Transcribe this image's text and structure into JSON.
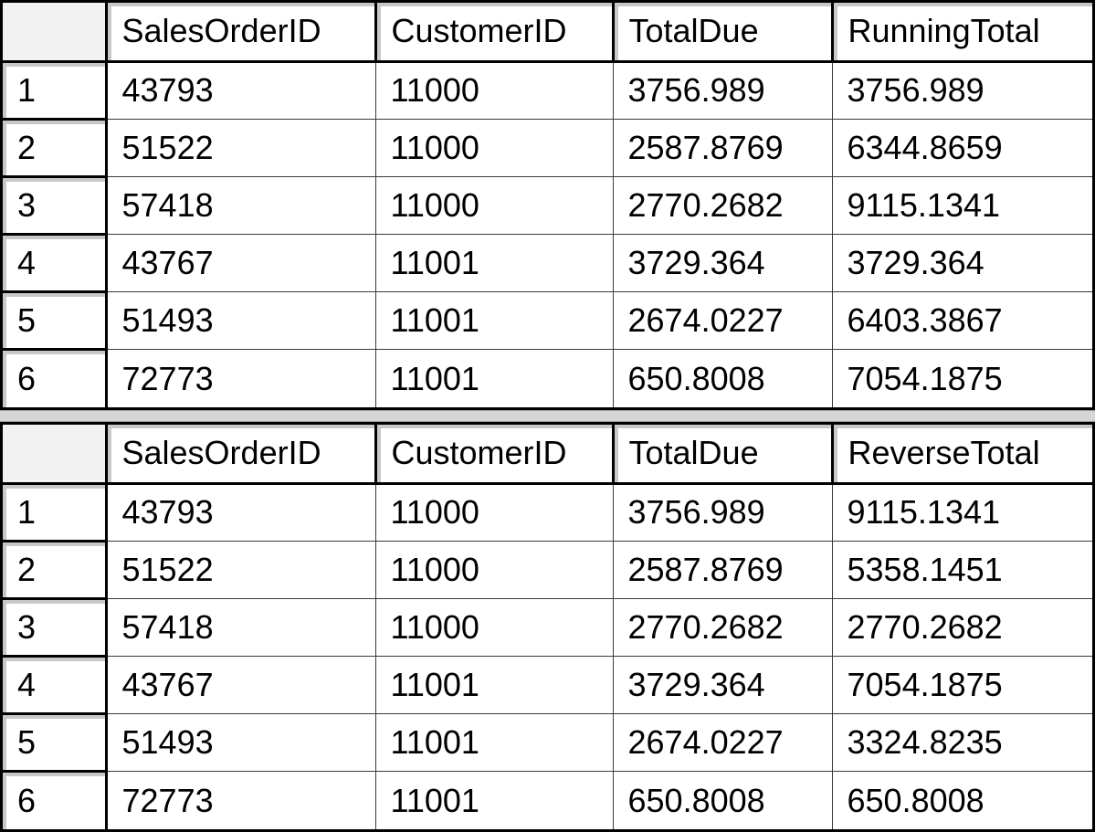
{
  "result_sets": [
    {
      "columns": [
        "SalesOrderID",
        "CustomerID",
        "TotalDue",
        "RunningTotal"
      ],
      "rows": [
        {
          "row_number": "1",
          "cells": [
            "43793",
            "11000",
            "3756.989",
            "3756.989"
          ]
        },
        {
          "row_number": "2",
          "cells": [
            "51522",
            "11000",
            "2587.8769",
            "6344.8659"
          ]
        },
        {
          "row_number": "3",
          "cells": [
            "57418",
            "11000",
            "2770.2682",
            "9115.1341"
          ]
        },
        {
          "row_number": "4",
          "cells": [
            "43767",
            "11001",
            "3729.364",
            "3729.364"
          ]
        },
        {
          "row_number": "5",
          "cells": [
            "51493",
            "11001",
            "2674.0227",
            "6403.3867"
          ]
        },
        {
          "row_number": "6",
          "cells": [
            "72773",
            "11001",
            "650.8008",
            "7054.1875"
          ]
        }
      ]
    },
    {
      "columns": [
        "SalesOrderID",
        "CustomerID",
        "TotalDue",
        "ReverseTotal"
      ],
      "rows": [
        {
          "row_number": "1",
          "cells": [
            "43793",
            "11000",
            "3756.989",
            "9115.1341"
          ]
        },
        {
          "row_number": "2",
          "cells": [
            "51522",
            "11000",
            "2587.8769",
            "5358.1451"
          ]
        },
        {
          "row_number": "3",
          "cells": [
            "57418",
            "11000",
            "2770.2682",
            "2770.2682"
          ]
        },
        {
          "row_number": "4",
          "cells": [
            "43767",
            "11001",
            "3729.364",
            "7054.1875"
          ]
        },
        {
          "row_number": "5",
          "cells": [
            "51493",
            "11001",
            "2674.0227",
            "3324.8235"
          ]
        },
        {
          "row_number": "6",
          "cells": [
            "72773",
            "11001",
            "650.8008",
            "650.8008"
          ]
        }
      ]
    }
  ]
}
